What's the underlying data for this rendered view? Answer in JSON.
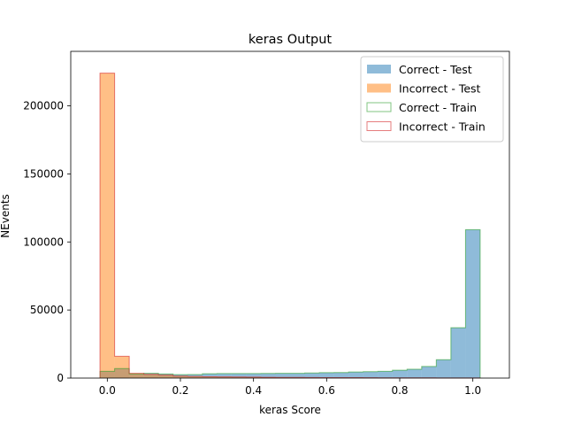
{
  "chart_data": {
    "type": "histogram",
    "title": "keras Output",
    "xlabel": "keras Score",
    "ylabel": "NEvents",
    "xlim": [
      -0.1,
      1.1
    ],
    "ylim": [
      0,
      240000
    ],
    "xticks": [
      0.0,
      0.2,
      0.4,
      0.6,
      0.8,
      1.0
    ],
    "xtick_labels": [
      "0.0",
      "0.2",
      "0.4",
      "0.6",
      "0.8",
      "1.0"
    ],
    "yticks": [
      0,
      50000,
      100000,
      150000,
      200000
    ],
    "ytick_labels": [
      "0",
      "50000",
      "100000",
      "150000",
      "200000"
    ],
    "legend_position": "top-right",
    "bins": [
      -0.02,
      0.02,
      0.06,
      0.1,
      0.14,
      0.18,
      0.22,
      0.26,
      0.3,
      0.34,
      0.38,
      0.42,
      0.46,
      0.5,
      0.54,
      0.58,
      0.62,
      0.66,
      0.7,
      0.74,
      0.78,
      0.82,
      0.86,
      0.9,
      0.94,
      0.98,
      1.02
    ],
    "series": [
      {
        "name": "Correct - Test",
        "style": "filled",
        "color": "#1f77b4",
        "values": [
          5000,
          7000,
          3000,
          3500,
          3000,
          2500,
          2600,
          3200,
          3300,
          3300,
          3300,
          3400,
          3500,
          3500,
          3700,
          4000,
          4100,
          4500,
          4700,
          5000,
          5800,
          6500,
          8500,
          13500,
          37000,
          109000
        ]
      },
      {
        "name": "Incorrect - Test",
        "style": "filled",
        "color": "#ff7f0e",
        "values": [
          224000,
          16000,
          3500,
          2800,
          2200,
          1500,
          1200,
          1000,
          900,
          800,
          700,
          600,
          500,
          450,
          400,
          350,
          300,
          300,
          250,
          200,
          200,
          150,
          150,
          100,
          100,
          50
        ]
      },
      {
        "name": "Correct - Train",
        "style": "step",
        "color": "#2ca02c",
        "values": [
          5000,
          7000,
          3000,
          3500,
          3000,
          2500,
          2600,
          3200,
          3300,
          3300,
          3300,
          3400,
          3500,
          3500,
          3700,
          4000,
          4100,
          4500,
          4700,
          5000,
          5800,
          6500,
          8500,
          13500,
          37000,
          109000
        ]
      },
      {
        "name": "Incorrect - Train",
        "style": "step",
        "color": "#d62728",
        "values": [
          224000,
          16000,
          3500,
          2800,
          2200,
          1500,
          1200,
          1000,
          900,
          800,
          700,
          600,
          500,
          450,
          400,
          350,
          300,
          300,
          250,
          200,
          200,
          150,
          150,
          100,
          100,
          50
        ]
      }
    ]
  }
}
